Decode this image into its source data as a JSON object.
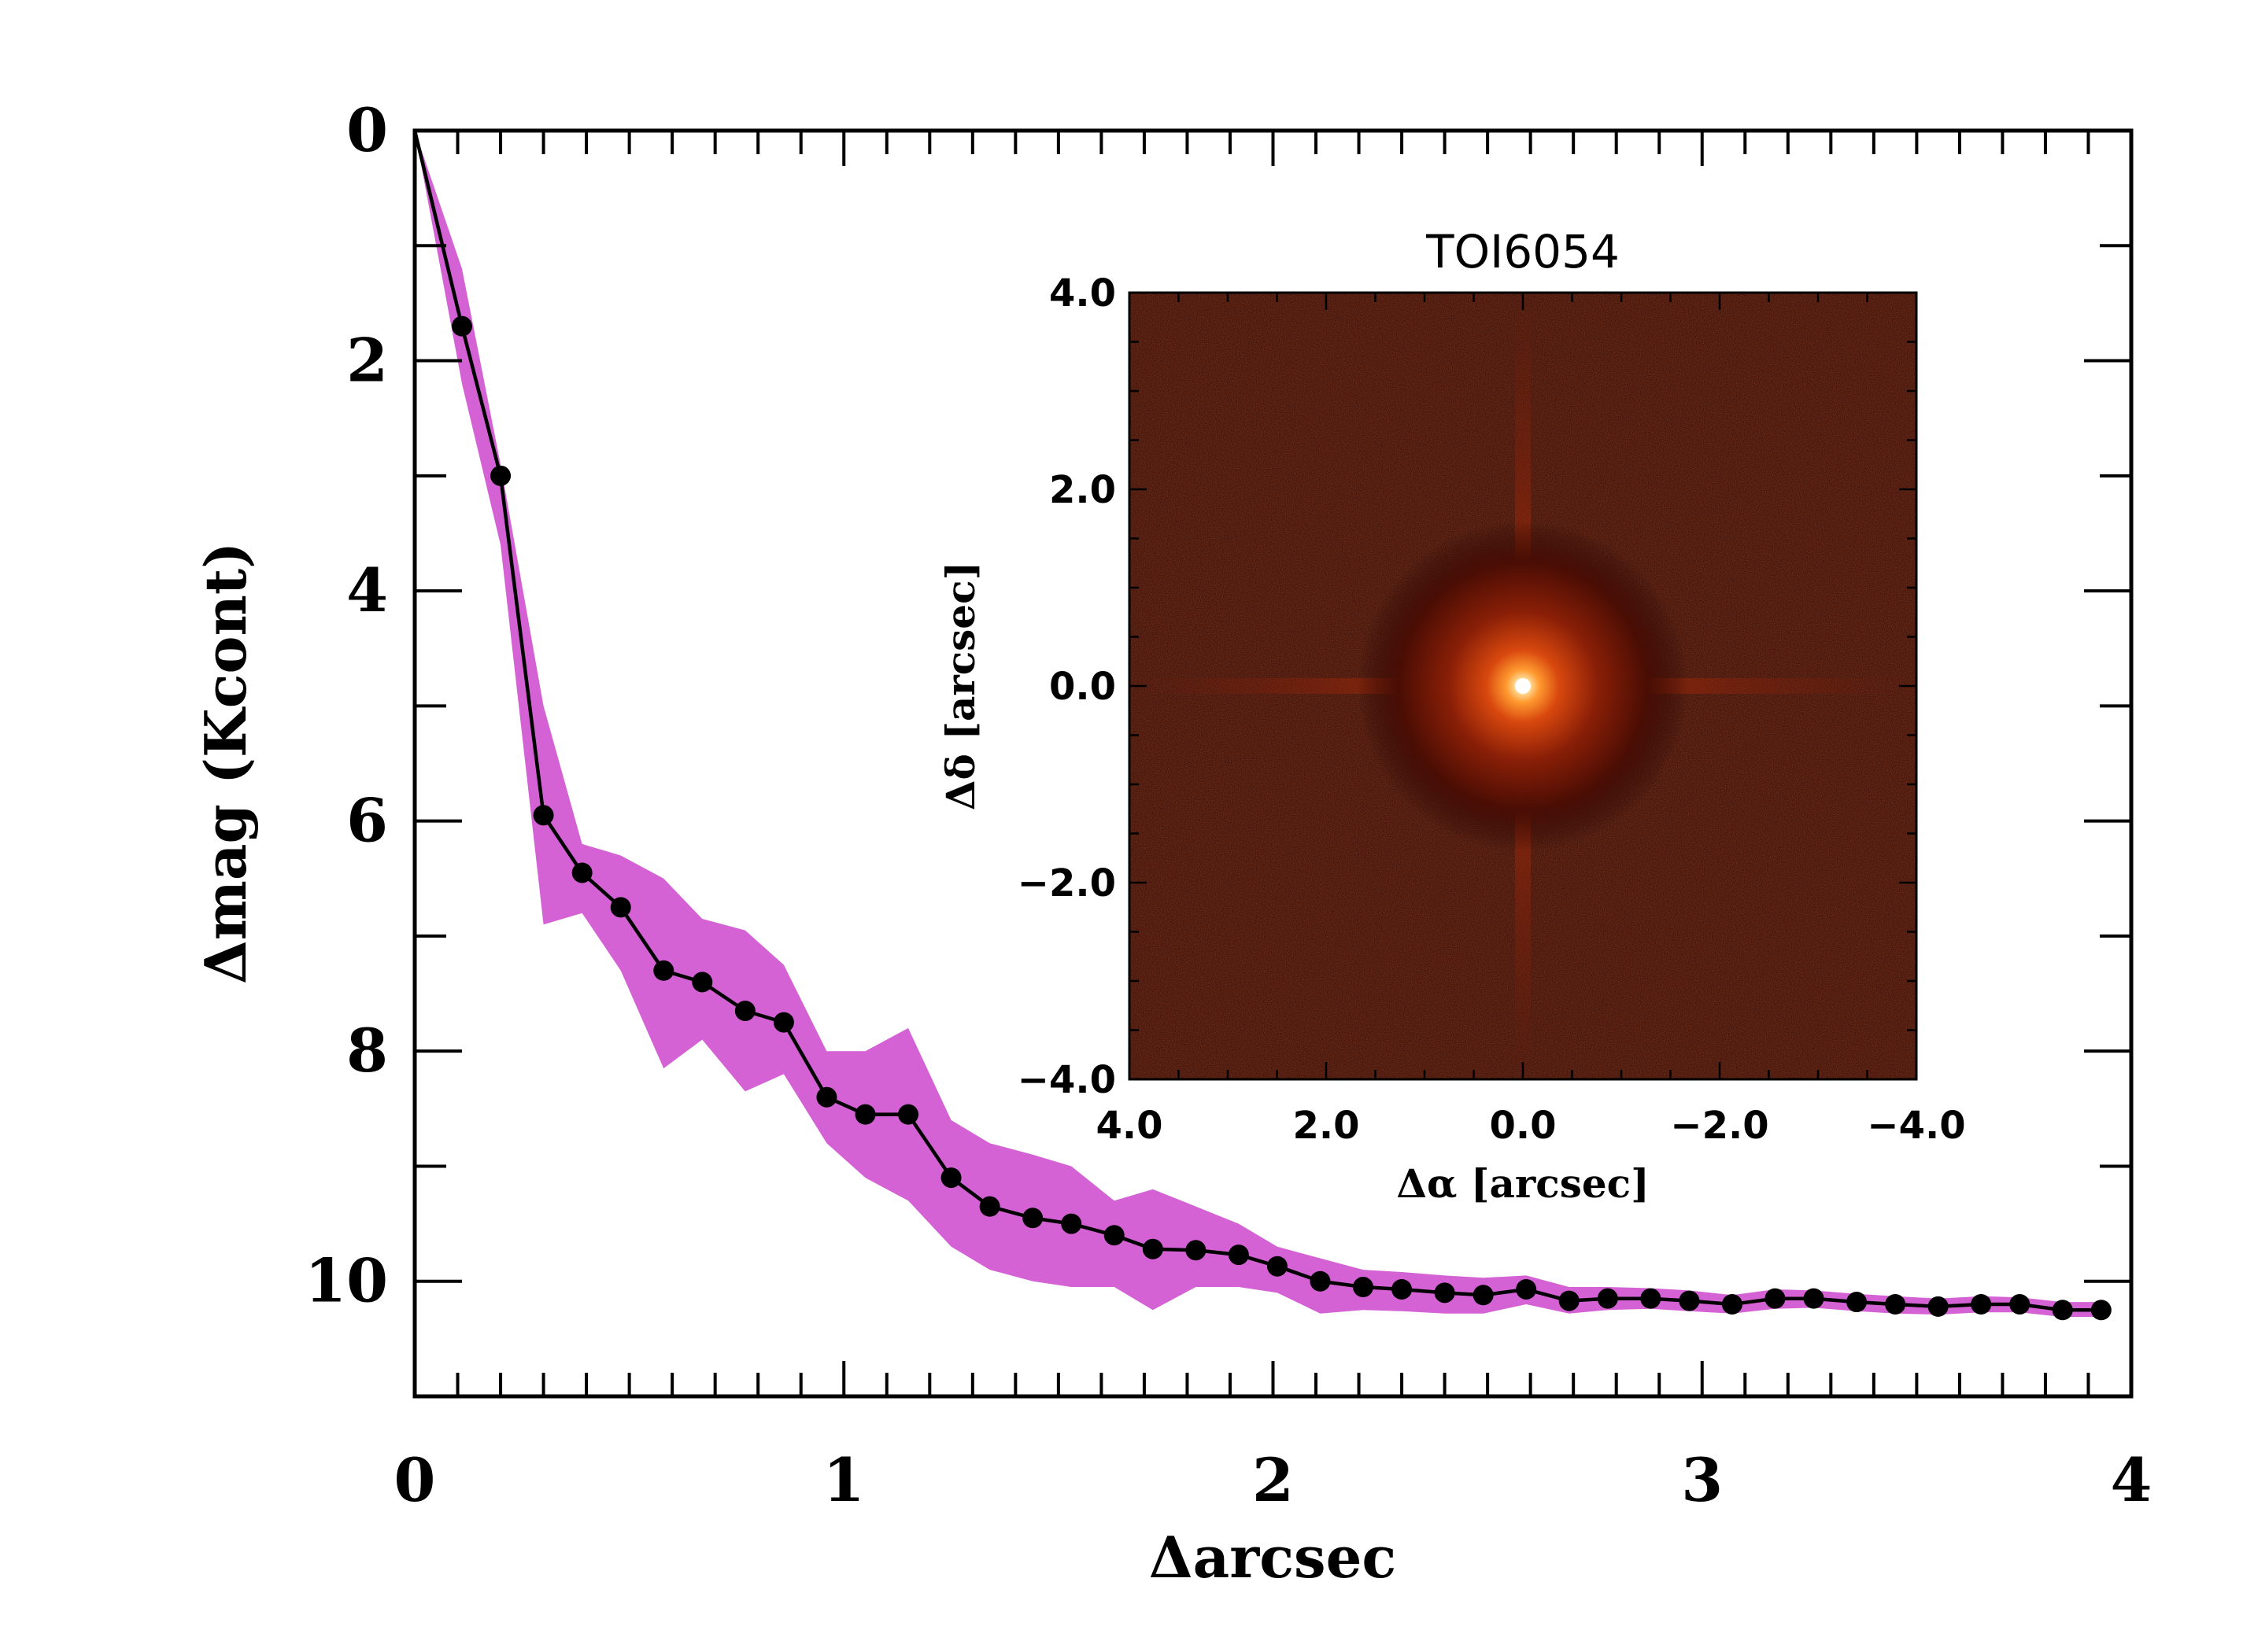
{
  "chart_data": [
    {
      "type": "line",
      "title": "",
      "xlabel": "Δarcsec",
      "ylabel": "Δmag (Kcont)",
      "xlim": [
        0,
        4
      ],
      "ylim": [
        11,
        0
      ],
      "y_inverted": true,
      "x_ticks": [
        "0",
        "1",
        "2",
        "3",
        "4"
      ],
      "y_ticks": [
        "0",
        "2",
        "4",
        "6",
        "8",
        "10"
      ],
      "line_color": "#000000",
      "band_color": "#d462d4",
      "series": [
        {
          "x": [
            0.0,
            0.11,
            0.2,
            0.3,
            0.39,
            0.48,
            0.58,
            0.67,
            0.77,
            0.86,
            0.96,
            1.05,
            1.15,
            1.25,
            1.34,
            1.44,
            1.53,
            1.63,
            1.72,
            1.82,
            1.92,
            2.01,
            2.11,
            2.21,
            2.3,
            2.4,
            2.49,
            2.59,
            2.69,
            2.78,
            2.88,
            2.97,
            3.07,
            3.17,
            3.26,
            3.36,
            3.45,
            3.55,
            3.65,
            3.74,
            3.84,
            3.93
          ],
          "y": [
            0.0,
            1.7,
            3.0,
            5.95,
            6.45,
            6.75,
            7.3,
            7.4,
            7.65,
            7.75,
            8.4,
            8.55,
            8.55,
            9.1,
            9.35,
            9.45,
            9.5,
            9.6,
            9.72,
            9.73,
            9.77,
            9.87,
            10.0,
            10.05,
            10.07,
            10.1,
            10.12,
            10.07,
            10.17,
            10.15,
            10.15,
            10.17,
            10.2,
            10.15,
            10.15,
            10.18,
            10.2,
            10.22,
            10.2,
            10.2,
            10.25,
            10.25
          ],
          "band_low": [
            0.0,
            2.2,
            3.6,
            6.9,
            6.8,
            7.3,
            8.15,
            7.9,
            8.35,
            8.2,
            8.8,
            9.1,
            9.3,
            9.7,
            9.9,
            10.0,
            10.05,
            10.05,
            10.25,
            10.05,
            10.05,
            10.1,
            10.28,
            10.25,
            10.26,
            10.28,
            10.28,
            10.2,
            10.28,
            10.25,
            10.24,
            10.26,
            10.28,
            10.24,
            10.23,
            10.26,
            10.28,
            10.29,
            10.27,
            10.27,
            10.31,
            10.31
          ],
          "band_high": [
            0.0,
            1.2,
            2.9,
            5.0,
            6.2,
            6.3,
            6.5,
            6.85,
            6.95,
            7.25,
            8.0,
            8.0,
            7.8,
            8.6,
            8.8,
            8.9,
            9.0,
            9.3,
            9.2,
            9.35,
            9.5,
            9.7,
            9.8,
            9.9,
            9.92,
            9.95,
            9.97,
            9.95,
            10.05,
            10.05,
            10.06,
            10.08,
            10.12,
            10.07,
            10.08,
            10.11,
            10.13,
            10.15,
            10.13,
            10.14,
            10.18,
            10.18
          ]
        }
      ]
    },
    {
      "type": "heatmap",
      "title": "TOI6054",
      "xlabel": "Δα [arcsec]",
      "ylabel": "Δδ [arcsec]",
      "xlim": [
        4.0,
        -4.0
      ],
      "ylim": [
        -4.0,
        4.0
      ],
      "x_ticks": [
        "4.0",
        "2.0",
        "0.0",
        "−2.0",
        "−4.0"
      ],
      "y_ticks": [
        "4.0",
        "2.0",
        "0.0",
        "−2.0",
        "−4.0"
      ],
      "colors": {
        "background": "#2a0603",
        "halo": "#b8300a",
        "core": "#ffffff"
      }
    }
  ]
}
